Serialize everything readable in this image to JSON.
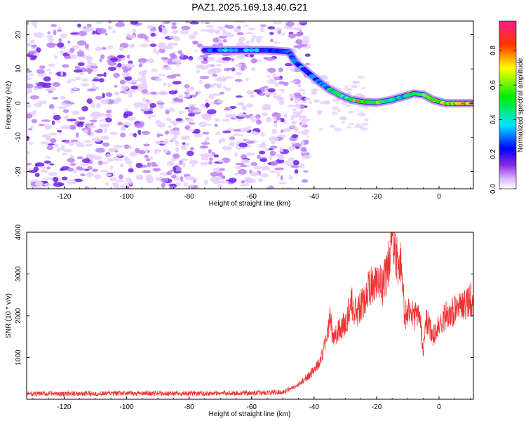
{
  "title": "PAZ1.2025.169.13.40.G21",
  "chart_data": [
    {
      "type": "heatmap",
      "title": "PAZ1.2025.169.13.40.G21",
      "xlabel": "Height of straight line (km)",
      "ylabel": "Frequency (Hz)",
      "xlim": [
        -132,
        11
      ],
      "ylim": [
        -25,
        24
      ],
      "xticks": [
        -120,
        -100,
        -80,
        -60,
        -40,
        -20,
        0
      ],
      "yticks": [
        -20,
        -10,
        0,
        10,
        20
      ],
      "colorbar": {
        "label": "Normalized spectral amplitude",
        "range": [
          0,
          0.97
        ],
        "ticks": [
          0.0,
          0.2,
          0.4,
          0.6,
          0.8
        ],
        "colormap": "rainbow (white-violet-blue-cyan-green-yellow-red-magenta)"
      },
      "ridge": {
        "x": [
          -75,
          -65,
          -55,
          -48,
          -46,
          -42,
          -38,
          -35,
          -32,
          -28,
          -24,
          -20,
          -16,
          -12,
          -8,
          -5,
          -2,
          2,
          6,
          11
        ],
        "y": [
          15.5,
          15.5,
          15.5,
          15,
          12,
          9,
          6,
          4,
          2.5,
          1,
          0.4,
          0.2,
          0.8,
          1.8,
          2.8,
          2.5,
          1,
          0,
          0,
          0
        ],
        "amplitude": [
          0.3,
          0.45,
          0.35,
          0.35,
          0.3,
          0.35,
          0.4,
          0.55,
          0.55,
          0.7,
          0.8,
          0.75,
          0.6,
          0.5,
          0.55,
          0.6,
          0.7,
          0.9,
          0.9,
          0.85
        ]
      },
      "noise_region_x": [
        -132,
        -48
      ],
      "grid": false
    },
    {
      "type": "line",
      "xlabel": "Height of straight line (km)",
      "ylabel": "SNR (10 * v/v)",
      "xlim": [
        -132,
        11
      ],
      "ylim": [
        0,
        4000
      ],
      "xticks": [
        -120,
        -100,
        -80,
        -60,
        -40,
        -20,
        0
      ],
      "yticks": [
        1000,
        2000,
        3000,
        4000
      ],
      "color": "#ee3333",
      "series_envelope": {
        "x": [
          -132,
          -120,
          -100,
          -80,
          -60,
          -50,
          -45,
          -42,
          -40,
          -38,
          -36,
          -35,
          -34,
          -32,
          -30,
          -28,
          -26,
          -24,
          -22,
          -20,
          -18,
          -16,
          -15,
          -14,
          -13,
          -12,
          -11,
          -10,
          -8,
          -6,
          -5,
          -4,
          -2,
          0,
          2,
          4,
          6,
          8,
          10,
          11
        ],
        "y": [
          130,
          130,
          140,
          140,
          150,
          170,
          350,
          550,
          700,
          900,
          1450,
          1950,
          1500,
          1650,
          1800,
          2300,
          2050,
          2400,
          2700,
          2900,
          2700,
          3300,
          3900,
          3400,
          3200,
          3300,
          2000,
          2100,
          2000,
          1900,
          1200,
          1900,
          1500,
          1800,
          2000,
          2100,
          2150,
          2250,
          2400,
          2300
        ]
      },
      "grid": false
    }
  ]
}
